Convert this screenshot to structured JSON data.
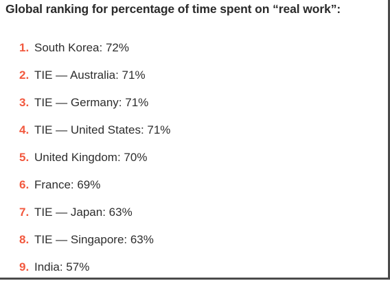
{
  "title": "Global ranking for percentage of time spent on “real work”:",
  "accent_color": "#f2583e",
  "items": [
    {
      "number": "1.",
      "text": "South Korea: 72%"
    },
    {
      "number": "2.",
      "text": "TIE — Australia: 71%"
    },
    {
      "number": "3.",
      "text": "TIE — Germany: 71%"
    },
    {
      "number": "4.",
      "text": "TIE — United States: 71%"
    },
    {
      "number": "5.",
      "text": "United Kingdom: 70%"
    },
    {
      "number": "6.",
      "text": "France: 69%"
    },
    {
      "number": "7.",
      "text": "TIE — Japan: 63%"
    },
    {
      "number": "8.",
      "text": "TIE — Singapore: 63%"
    },
    {
      "number": "9.",
      "text": "India: 57%"
    }
  ]
}
